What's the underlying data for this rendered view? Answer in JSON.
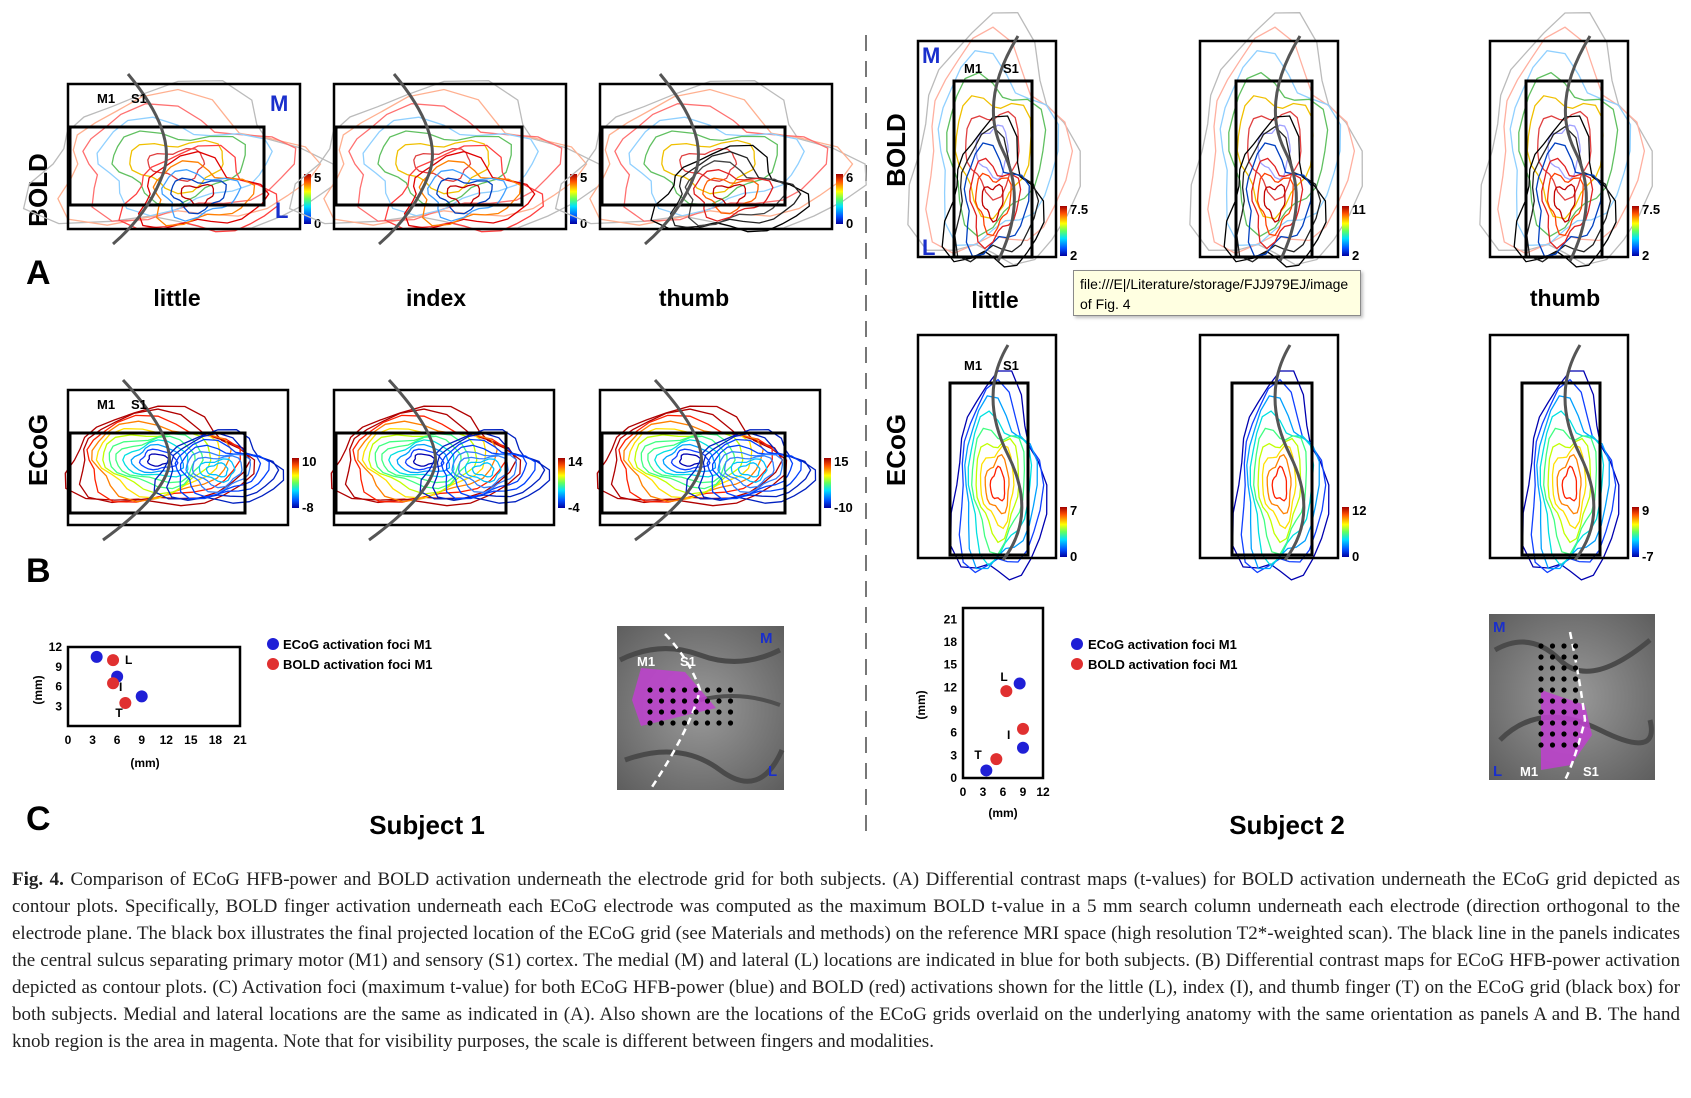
{
  "panels": {
    "A": "A",
    "B": "B",
    "C": "C",
    "bold": "BOLD",
    "ecog": "ECoG",
    "m": "M",
    "l": "L",
    "m1": "M1",
    "s1": "S1"
  },
  "fingers": {
    "little": "little",
    "index": "index",
    "thumb": "thumb"
  },
  "subjects": {
    "s1": "Subject 1",
    "s2": "Subject 2"
  },
  "colorbars": {
    "s1_bold": [
      {
        "max": "5",
        "min": "0"
      },
      {
        "max": "5",
        "min": "0"
      },
      {
        "max": "6",
        "min": "0"
      }
    ],
    "s1_ecog": [
      {
        "max": "10",
        "min": "-8"
      },
      {
        "max": "14",
        "min": "-4"
      },
      {
        "max": "15",
        "min": "-10"
      }
    ],
    "s2_bold": [
      {
        "max": "7.5",
        "min": "2"
      },
      {
        "max": "11",
        "min": "2"
      },
      {
        "max": "7.5",
        "min": "2"
      }
    ],
    "s2_ecog": [
      {
        "max": "7",
        "min": "0"
      },
      {
        "max": "12",
        "min": "0"
      },
      {
        "max": "9",
        "min": "-7"
      }
    ]
  },
  "legend": {
    "ecog": "ECoG activation foci M1",
    "bold": "BOLD activation foci M1"
  },
  "foci": {
    "unit": "(mm)",
    "s1_xticks": [
      "0",
      "3",
      "6",
      "9",
      "12",
      "15",
      "18",
      "21"
    ],
    "s1_yticks": [
      "12",
      "9",
      "6",
      "3"
    ],
    "s2_xticks": [
      "0",
      "3",
      "6",
      "9",
      "12"
    ],
    "s2_yticks": [
      "21",
      "18",
      "15",
      "12",
      "9",
      "6",
      "3",
      "0"
    ],
    "point_labels": {
      "little": "L",
      "index": "I",
      "thumb": "T"
    },
    "s1_points": {
      "ecog": [
        {
          "f": "little",
          "x": 3.5,
          "y": 10.5
        },
        {
          "f": "index",
          "x": 6,
          "y": 7.5
        },
        {
          "f": "thumb",
          "x": 9,
          "y": 4.5
        }
      ],
      "bold": [
        {
          "f": "little",
          "x": 5.5,
          "y": 10
        },
        {
          "f": "index",
          "x": 5.5,
          "y": 6.5
        },
        {
          "f": "thumb",
          "x": 7,
          "y": 3.5
        }
      ]
    },
    "s2_points": {
      "ecog": [
        {
          "f": "little",
          "x": 8.5,
          "y": 12.5
        },
        {
          "f": "index",
          "x": 9,
          "y": 4
        },
        {
          "f": "thumb",
          "x": 3.5,
          "y": 1
        }
      ],
      "bold": [
        {
          "f": "little",
          "x": 6.5,
          "y": 11.5
        },
        {
          "f": "index",
          "x": 9,
          "y": 6.5
        },
        {
          "f": "thumb",
          "x": 5,
          "y": 2.5
        }
      ]
    }
  },
  "colors": {
    "ecog": "#1f1fd6",
    "bold": "#e03030",
    "orient": "#1a2fcc",
    "magenta": "#c040d0"
  },
  "tooltip": {
    "text": "file:///E|/Literature/storage/FJJ979EJ/image of Fig. 4"
  },
  "caption": {
    "label": "Fig. 4.",
    "text": " Comparison of ECoG HFB-power and BOLD activation underneath the electrode grid for both subjects. (A) Differential contrast maps (t-values) for BOLD activation underneath the ECoG grid depicted as contour plots. Specifically, BOLD finger activation underneath each ECoG electrode was computed as the maximum BOLD t-value in a 5 mm search column underneath each electrode (direction orthogonal to the electrode plane. The black box illustrates the final projected location of the ECoG grid (see Materials and methods) on the reference MRI space (high resolution T2*-weighted scan). The black line in the panels indicates the central sulcus separating primary motor (M1) and sensory (S1) cortex. The medial (M) and lateral (L) locations are indicated in blue for both subjects. (B) Differential contrast maps for ECoG HFB-power activation depicted as contour plots. (C) Activation foci (maximum t-value) for both ECoG HFB-power (blue) and BOLD (red) activations shown for the little (L), index (I), and thumb finger (T) on the ECoG grid (black box) for both subjects. Medial and lateral locations are the same as indicated in (A). Also shown are the locations of the ECoG grids overlaid on the underlying anatomy with the same orientation as panels A and B. The hand knob region is the area in magenta. Note that for visibility purposes, the scale is different between fingers and modalities."
  }
}
